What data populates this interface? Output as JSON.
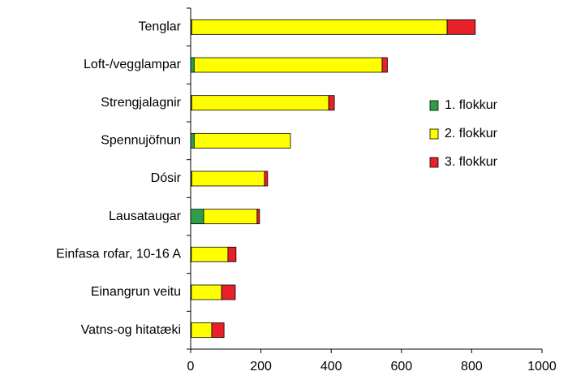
{
  "chart_data": {
    "type": "stacked-barh",
    "categories": [
      "Tenglar",
      "Loft-/vegglampar",
      "Strengjalagnir",
      "Spennujöfnun",
      "Dósir",
      "Lausataugar",
      "Einfasa rofar, 10-16 A",
      "Einangrun veitu",
      "Vatns-og hitatæki"
    ],
    "series": [
      {
        "name": "1. flokkur",
        "color": "#2e9e4a",
        "values": [
          3,
          10,
          3,
          10,
          3,
          37,
          2,
          2,
          2
        ]
      },
      {
        "name": "2. flokkur",
        "color": "#ffff00",
        "values": [
          727,
          535,
          390,
          274,
          207,
          152,
          104,
          86,
          58
        ]
      },
      {
        "name": "3. flokkur",
        "color": "#e8202a",
        "values": [
          80,
          15,
          16,
          0,
          9,
          7,
          23,
          39,
          35
        ]
      }
    ],
    "xlim": [
      0,
      1000
    ],
    "xticks": [
      0,
      200,
      400,
      600,
      800,
      1000
    ],
    "legend": "right"
  }
}
